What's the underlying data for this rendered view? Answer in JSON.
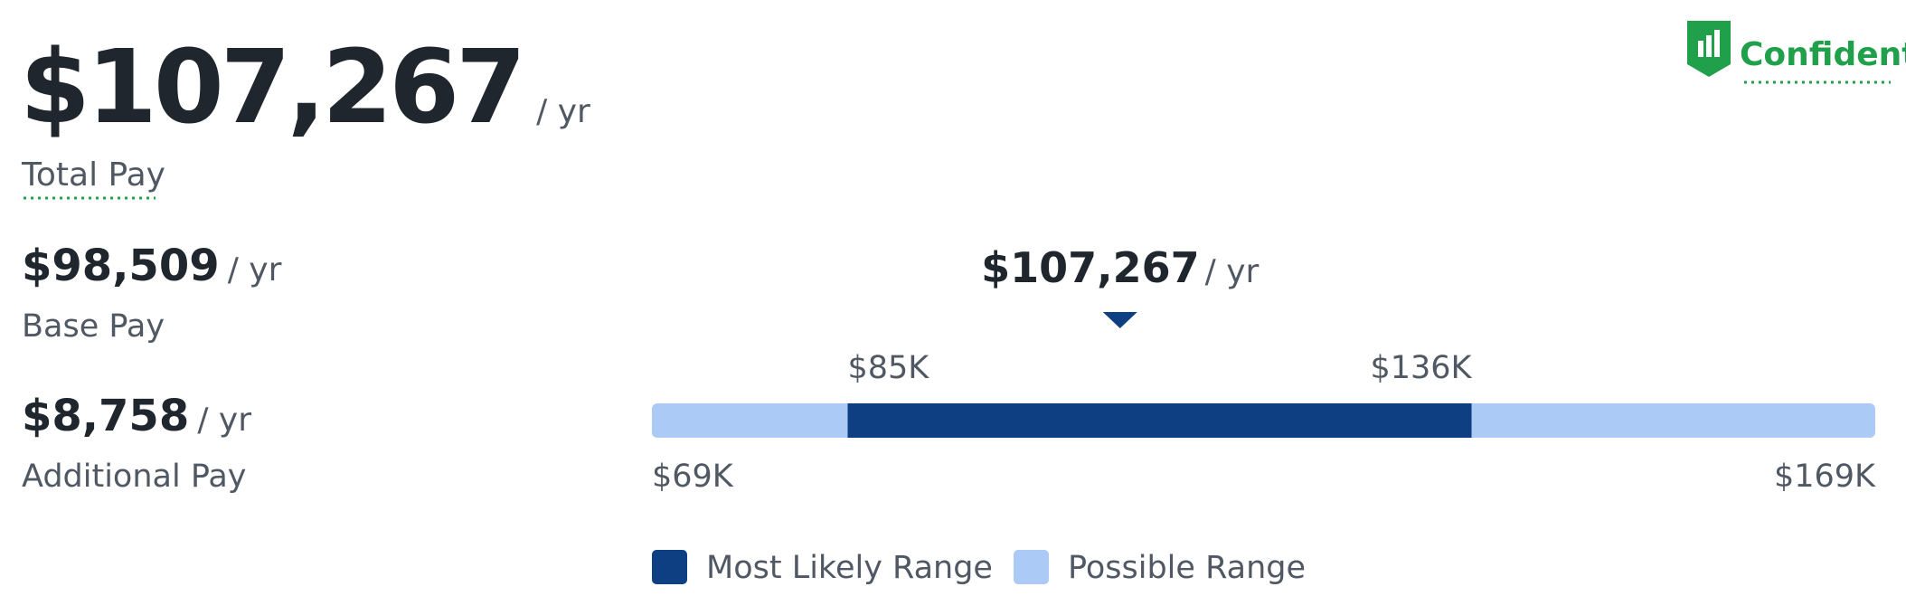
{
  "header": {
    "total": "$107,267",
    "total_unit": "/ yr",
    "total_label": "Total Pay",
    "confidence": "Confident"
  },
  "breakdown": [
    {
      "amount": "$98,509",
      "unit": "/ yr",
      "label": "Base Pay"
    },
    {
      "amount": "$8,758",
      "unit": "/ yr",
      "label": "Additional Pay"
    }
  ],
  "range": {
    "median": {
      "value": 107267,
      "label": "$107,267"
    },
    "median_unit": "/ yr",
    "min": {
      "value": 69000,
      "label": "$69K"
    },
    "max": {
      "value": 169000,
      "label": "$169K"
    },
    "likely_low": {
      "value": 85000,
      "label": "$85K"
    },
    "likely_high": {
      "value": 136000,
      "label": "$136K"
    },
    "colors": {
      "likely": "#0d3f82",
      "possible": "#abcaf5"
    }
  },
  "legend": [
    "Most Likely Range",
    "Possible Range"
  ]
}
